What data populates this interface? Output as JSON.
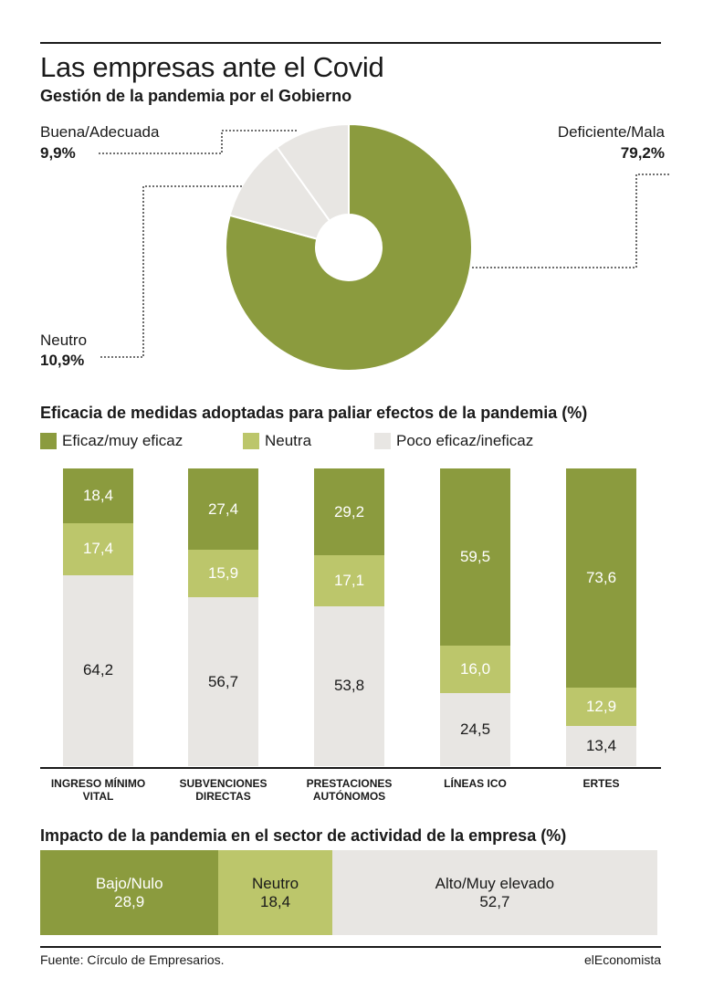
{
  "header": {
    "title": "Las empresas ante el Covid",
    "subtitle": "Gestión de la pandemia por el Gobierno"
  },
  "colors": {
    "dark_green": "#8b9b3e",
    "light_green": "#bcc66b",
    "grey": "#e8e6e3"
  },
  "pie": {
    "slices": [
      {
        "label": "Deficiente/Mala",
        "value_label": "79,2%",
        "value": 79.2,
        "color": "#8b9b3e"
      },
      {
        "label": "Neutro",
        "value_label": "10,9%",
        "value": 10.9,
        "color": "#e8e6e3"
      },
      {
        "label": "Buena/Adecuada",
        "value_label": "9,9%",
        "value": 9.9,
        "color": "#e8e6e3"
      }
    ]
  },
  "measures": {
    "title": "Eficacia de medidas adoptadas para paliar efectos de la pandemia (%)",
    "legend": [
      "Eficaz/muy eficaz",
      "Neutra",
      "Poco eficaz/ineficaz"
    ]
  },
  "impact": {
    "title": "Impacto de la pandemia en el sector de actividad de la empresa (%)",
    "segments": [
      {
        "label": "Bajo/Nulo",
        "value_label": "28,9",
        "value": 28.9
      },
      {
        "label": "Neutro",
        "value_label": "18,4",
        "value": 18.4
      },
      {
        "label": "Alto/Muy elevado",
        "value_label": "52,7",
        "value": 52.7
      }
    ]
  },
  "footer": {
    "source": "Fuente: Círculo de Empresarios.",
    "brand": "elEconomista"
  },
  "chart_data": [
    {
      "type": "pie",
      "title": "Gestión de la pandemia por el Gobierno",
      "categories": [
        "Deficiente/Mala",
        "Neutro",
        "Buena/Adecuada"
      ],
      "values": [
        79.2,
        10.9,
        9.9
      ]
    },
    {
      "type": "bar",
      "stacked": true,
      "title": "Eficacia de medidas adoptadas para paliar efectos de la pandemia (%)",
      "categories": [
        "INGRESO MÍNIMO VITAL",
        "SUBVENCIONES DIRECTAS",
        "PRESTACIONES AUTÓNOMOS",
        "LÍNEAS ICO",
        "ERTES"
      ],
      "series": [
        {
          "name": "Eficaz/muy eficaz",
          "values": [
            18.4,
            27.4,
            29.2,
            59.5,
            73.6
          ],
          "labels": [
            "18,4",
            "27,4",
            "29,2",
            "59,5",
            "73,6"
          ],
          "color": "#8b9b3e"
        },
        {
          "name": "Neutra",
          "values": [
            17.4,
            15.9,
            17.1,
            16.0,
            12.9
          ],
          "labels": [
            "17,4",
            "15,9",
            "17,1",
            "16,0",
            "12,9"
          ],
          "color": "#bcc66b"
        },
        {
          "name": "Poco eficaz/ineficaz",
          "values": [
            64.2,
            56.7,
            53.8,
            24.5,
            13.4
          ],
          "labels": [
            "64,2",
            "56,7",
            "53,8",
            "24,5",
            "13,4"
          ],
          "color": "#e8e6e3"
        }
      ],
      "ylim": [
        0,
        100
      ]
    },
    {
      "type": "bar",
      "stacked": true,
      "orientation": "horizontal",
      "title": "Impacto de la pandemia en el sector de actividad de la empresa (%)",
      "categories": [
        "Bajo/Nulo",
        "Neutro",
        "Alto/Muy elevado"
      ],
      "values": [
        28.9,
        18.4,
        52.7
      ]
    }
  ]
}
